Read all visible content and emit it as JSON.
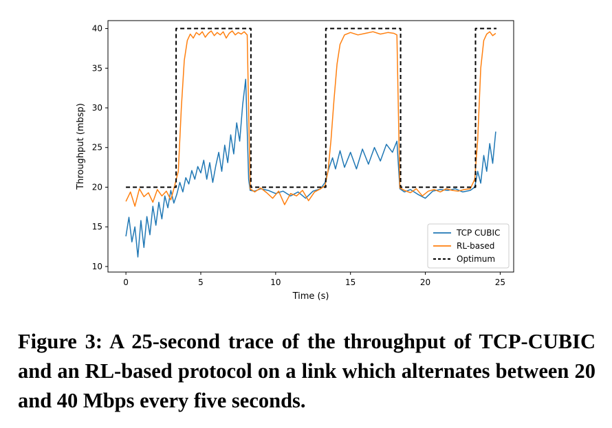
{
  "chart_data": {
    "type": "line",
    "title": "",
    "xlabel": "Time (s)",
    "ylabel": "Throughput (mbsp)",
    "xlim": [
      -1.2,
      25.9
    ],
    "ylim": [
      9.3,
      41.0
    ],
    "xticks": [
      0,
      5,
      10,
      15,
      20,
      25
    ],
    "yticks": [
      10,
      15,
      20,
      25,
      30,
      35,
      40
    ],
    "grid": false,
    "legend_position": "lower-right",
    "series": [
      {
        "name": "TCP CUBIC",
        "color": "#1f77b4",
        "style": "solid",
        "x": [
          0,
          0.2,
          0.4,
          0.6,
          0.8,
          1.0,
          1.2,
          1.4,
          1.6,
          1.8,
          2.0,
          2.2,
          2.4,
          2.6,
          2.8,
          3.0,
          3.2,
          3.4,
          3.6,
          3.8,
          4.0,
          4.2,
          4.4,
          4.6,
          4.8,
          5.0,
          5.2,
          5.4,
          5.6,
          5.8,
          6.0,
          6.2,
          6.4,
          6.6,
          6.8,
          7.0,
          7.2,
          7.4,
          7.6,
          7.8,
          8.0,
          8.2,
          8.3,
          8.6,
          9.0,
          9.5,
          10.0,
          10.5,
          11.0,
          11.5,
          12.0,
          12.5,
          13.0,
          13.3,
          13.4,
          13.6,
          13.8,
          14.0,
          14.3,
          14.6,
          15.0,
          15.4,
          15.8,
          16.2,
          16.6,
          17.0,
          17.4,
          17.8,
          18.1,
          18.3,
          18.6,
          19.0,
          19.5,
          20.0,
          20.5,
          21.0,
          21.5,
          22.0,
          22.5,
          23.0,
          23.3,
          23.5,
          23.7,
          23.9,
          24.1,
          24.3,
          24.5,
          24.7
        ],
        "values": [
          13.8,
          16.2,
          13.1,
          15.0,
          11.2,
          15.8,
          12.4,
          16.3,
          14.0,
          17.6,
          15.2,
          18.1,
          16.0,
          18.9,
          17.4,
          19.6,
          18.0,
          19.1,
          20.6,
          19.4,
          21.2,
          20.4,
          22.1,
          21.0,
          22.6,
          21.8,
          23.4,
          21.0,
          23.1,
          20.6,
          22.7,
          24.4,
          22.0,
          25.3,
          23.1,
          26.6,
          24.2,
          28.1,
          25.8,
          30.4,
          33.6,
          21.0,
          19.6,
          19.5,
          19.8,
          19.6,
          19.2,
          19.5,
          18.9,
          19.4,
          18.6,
          19.5,
          19.8,
          20.6,
          21.4,
          22.6,
          23.7,
          22.3,
          24.6,
          22.5,
          24.4,
          22.3,
          24.8,
          22.9,
          25.0,
          23.3,
          25.4,
          24.4,
          25.8,
          19.8,
          19.4,
          19.7,
          19.1,
          18.6,
          19.5,
          19.7,
          19.6,
          19.8,
          19.4,
          19.6,
          20.0,
          22.0,
          20.5,
          24.0,
          22.0,
          25.5,
          23.0,
          27.0
        ]
      },
      {
        "name": "RL-based",
        "color": "#ff7f0e",
        "style": "solid",
        "x": [
          0,
          0.3,
          0.6,
          0.9,
          1.2,
          1.5,
          1.8,
          2.1,
          2.4,
          2.7,
          3.0,
          3.2,
          3.5,
          3.7,
          3.9,
          4.1,
          4.3,
          4.5,
          4.7,
          4.9,
          5.1,
          5.3,
          5.5,
          5.7,
          5.9,
          6.1,
          6.3,
          6.5,
          6.7,
          6.9,
          7.1,
          7.3,
          7.5,
          7.7,
          7.9,
          8.1,
          8.3,
          8.6,
          9.0,
          9.4,
          9.8,
          10.2,
          10.6,
          11.0,
          11.4,
          11.8,
          12.2,
          12.6,
          13.0,
          13.3,
          13.5,
          13.7,
          13.9,
          14.1,
          14.3,
          14.6,
          15.0,
          15.5,
          16.0,
          16.5,
          17.0,
          17.5,
          17.9,
          18.1,
          18.3,
          18.6,
          19.0,
          19.4,
          19.8,
          20.2,
          20.6,
          21.0,
          21.4,
          21.8,
          22.2,
          22.6,
          23.0,
          23.3,
          23.5,
          23.7,
          23.9,
          24.1,
          24.3,
          24.5,
          24.7
        ],
        "values": [
          18.2,
          19.4,
          17.6,
          19.8,
          18.8,
          19.3,
          18.1,
          19.7,
          18.9,
          19.5,
          18.4,
          19.8,
          22.0,
          30.0,
          36.0,
          38.5,
          39.3,
          38.8,
          39.5,
          39.2,
          39.6,
          38.9,
          39.4,
          39.7,
          39.1,
          39.5,
          39.2,
          39.6,
          38.8,
          39.4,
          39.7,
          39.2,
          39.5,
          39.3,
          39.6,
          39.2,
          19.8,
          19.4,
          19.9,
          19.3,
          18.6,
          19.5,
          17.8,
          19.2,
          18.9,
          19.6,
          18.3,
          19.4,
          19.8,
          20.2,
          22.0,
          26.0,
          31.0,
          35.5,
          38.0,
          39.2,
          39.5,
          39.2,
          39.4,
          39.6,
          39.3,
          39.5,
          39.4,
          39.2,
          19.9,
          19.6,
          19.3,
          19.8,
          18.9,
          19.5,
          19.7,
          19.4,
          19.8,
          19.6,
          19.5,
          19.7,
          19.8,
          21.0,
          26.0,
          35.0,
          38.5,
          39.3,
          39.6,
          39.1,
          39.4
        ]
      },
      {
        "name": "Optimum",
        "color": "#000000",
        "style": "dashed",
        "x": [
          0,
          3.35,
          3.35,
          8.35,
          8.35,
          13.35,
          13.35,
          18.35,
          18.35,
          23.35,
          23.35,
          24.75
        ],
        "values": [
          20,
          20,
          40,
          40,
          20,
          20,
          40,
          40,
          20,
          20,
          40,
          40
        ]
      }
    ]
  },
  "caption": {
    "label": "Figure 3:",
    "text": "A 25-second trace of the throughput of TCP-CUBIC and an RL-based protocol on a link which alternates between 20 and 40 Mbps every five seconds."
  }
}
